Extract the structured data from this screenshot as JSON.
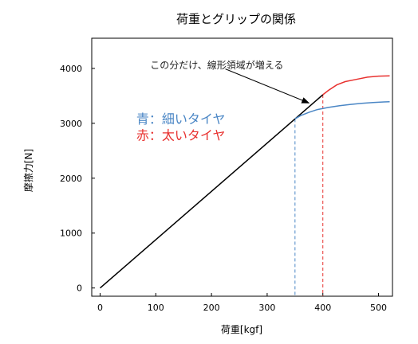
{
  "chart_data": {
    "type": "line",
    "title": "荷重とグリップの関係",
    "xlabel": "荷重[kgf]",
    "ylabel": "摩擦力[N]",
    "xlim": [
      -15,
      525
    ],
    "ylim": [
      -150,
      4550
    ],
    "x_ticks": [
      0,
      100,
      200,
      300,
      400,
      500
    ],
    "y_ticks": [
      0,
      1000,
      2000,
      3000,
      4000
    ],
    "grid": false,
    "series": [
      {
        "color": "#000000",
        "points": [
          [
            0,
            0
          ],
          [
            400,
            3520
          ]
        ]
      },
      {
        "color": "#4a86c5",
        "points": [
          [
            350,
            3080
          ],
          [
            360,
            3140
          ],
          [
            375,
            3200
          ],
          [
            390,
            3250
          ],
          [
            410,
            3290
          ],
          [
            430,
            3320
          ],
          [
            450,
            3345
          ],
          [
            470,
            3365
          ],
          [
            490,
            3380
          ],
          [
            510,
            3390
          ],
          [
            520,
            3392
          ]
        ]
      },
      {
        "color": "#e8312f",
        "points": [
          [
            400,
            3520
          ],
          [
            410,
            3600
          ],
          [
            425,
            3700
          ],
          [
            440,
            3760
          ],
          [
            460,
            3800
          ],
          [
            480,
            3840
          ],
          [
            500,
            3860
          ],
          [
            520,
            3865
          ]
        ]
      }
    ],
    "vlines": [
      {
        "x": 350,
        "y": 3080,
        "color": "#4a86c5"
      },
      {
        "x": 400,
        "y": 3520,
        "color": "#e8312f"
      }
    ],
    "annotation": {
      "text": "この分だけ、線形領域が増える",
      "text_at": [
        90,
        4000
      ],
      "arrow_from": [
        225,
        3990
      ],
      "arrow_to": [
        375,
        3370
      ]
    },
    "legend_text": [
      {
        "text": "青：細いタイヤ",
        "color": "#4a86c5",
        "at": [
          65,
          3000
        ]
      },
      {
        "text": "赤：太いタイヤ",
        "color": "#e8312f",
        "at": [
          65,
          2700
        ]
      }
    ]
  }
}
